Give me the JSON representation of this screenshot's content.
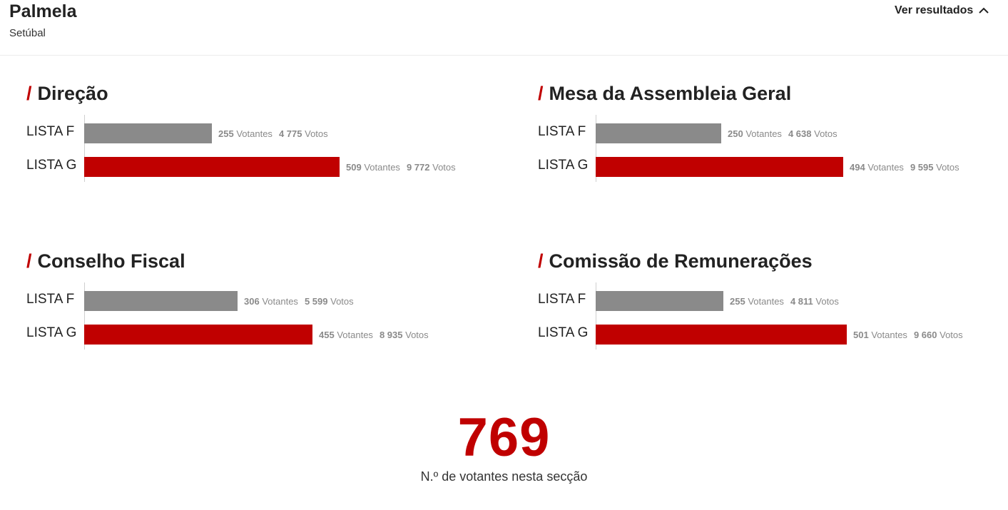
{
  "header": {
    "title": "Palmela",
    "subtitle": "Setúbal",
    "toggle_label": "Ver resultados"
  },
  "colors": {
    "accent": "#c00000",
    "lista_f": "#8a8a8a",
    "lista_g": "#c00000"
  },
  "bar_scale_max": 509,
  "sections": [
    {
      "slash": "/",
      "title": "Direção",
      "rows": [
        {
          "label": "LISTA F",
          "votantes": "255",
          "votantes_unit": "Votantes",
          "votos": "4 775",
          "votos_unit": "Votos",
          "value": 255
        },
        {
          "label": "LISTA G",
          "votantes": "509",
          "votantes_unit": "Votantes",
          "votos": "9 772",
          "votos_unit": "Votos",
          "value": 509
        }
      ]
    },
    {
      "slash": "/",
      "title": "Mesa da Assembleia Geral",
      "rows": [
        {
          "label": "LISTA F",
          "votantes": "250",
          "votantes_unit": "Votantes",
          "votos": "4 638",
          "votos_unit": "Votos",
          "value": 250
        },
        {
          "label": "LISTA G",
          "votantes": "494",
          "votantes_unit": "Votantes",
          "votos": "9 595",
          "votos_unit": "Votos",
          "value": 494
        }
      ]
    },
    {
      "slash": "/",
      "title": "Conselho Fiscal",
      "rows": [
        {
          "label": "LISTA F",
          "votantes": "306",
          "votantes_unit": "Votantes",
          "votos": "5 599",
          "votos_unit": "Votos",
          "value": 306
        },
        {
          "label": "LISTA G",
          "votantes": "455",
          "votantes_unit": "Votantes",
          "votos": "8 935",
          "votos_unit": "Votos",
          "value": 455
        }
      ]
    },
    {
      "slash": "/",
      "title": "Comissão de Remunerações",
      "rows": [
        {
          "label": "LISTA F",
          "votantes": "255",
          "votantes_unit": "Votantes",
          "votos": "4 811",
          "votos_unit": "Votos",
          "value": 255
        },
        {
          "label": "LISTA G",
          "votantes": "501",
          "votantes_unit": "Votantes",
          "votos": "9 660",
          "votos_unit": "Votos",
          "value": 501
        }
      ]
    }
  ],
  "total": {
    "value": "769",
    "caption": "N.º de votantes nesta secção"
  }
}
